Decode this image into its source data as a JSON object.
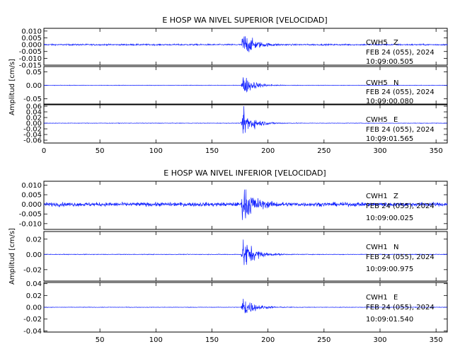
{
  "chart_data": [
    {
      "type": "line",
      "title": "E HOSP WA NIVEL SUPERIOR [VELOCIDAD]",
      "ylabel": "Amplitud [cm/s]",
      "xlim": [
        0,
        360
      ],
      "x_ticks": [
        "0",
        "50",
        "100",
        "150",
        "200",
        "250",
        "300",
        "350"
      ],
      "x_tick_values": [
        0,
        50,
        100,
        150,
        200,
        250,
        300,
        350
      ],
      "series_color": "#1020ff",
      "event_onset_x": 176,
      "channels": [
        {
          "name": "CWH5 Z",
          "station": "CWH5",
          "component": "Z",
          "date": "FEB 24 (055), 2024",
          "time": "10:09:00.505",
          "ylim": [
            -0.015,
            0.012
          ],
          "y_ticks": [
            "0.010",
            "0.005",
            "0.000",
            "-0.005",
            "-0.010",
            "-0.015"
          ],
          "y_tick_values": [
            0.01,
            0.005,
            0.0,
            -0.005,
            -0.01,
            -0.015
          ],
          "noise_level": 0.0006,
          "peak_amplitude": 0.011
        },
        {
          "name": "CWH5 N",
          "station": "CWH5",
          "component": "N",
          "date": "FEB 24 (055), 2024",
          "time": "10:09:00.080",
          "ylim": [
            -0.07,
            0.07
          ],
          "y_ticks": [
            "0.05",
            "0.00",
            "-0.05"
          ],
          "y_tick_values": [
            0.05,
            0.0,
            -0.05
          ],
          "noise_level": 0.001,
          "peak_amplitude": 0.045
        },
        {
          "name": "CWH5 E",
          "station": "CWH5",
          "component": "E",
          "date": "FEB 24 (055), 2024",
          "time": "10:09:01.565",
          "ylim": [
            -0.07,
            0.065
          ],
          "y_ticks": [
            "0.06",
            "0.04",
            "0.02",
            "0.00",
            "-0.02",
            "-0.04",
            "-0.06"
          ],
          "y_tick_values": [
            0.06,
            0.04,
            0.02,
            0.0,
            -0.02,
            -0.04,
            -0.06
          ],
          "noise_level": 0.001,
          "peak_amplitude": 0.058
        }
      ]
    },
    {
      "type": "line",
      "title": "E HOSP WA NIVEL INFERIOR [VELOCIDAD]",
      "ylabel": "Amplitud [cm/s]",
      "xlim": [
        0,
        360
      ],
      "x_ticks": [
        "50",
        "100",
        "150",
        "200",
        "250",
        "300",
        "350"
      ],
      "x_tick_values": [
        50,
        100,
        150,
        200,
        250,
        300,
        350
      ],
      "series_color": "#1020ff",
      "event_onset_x": 176,
      "channels": [
        {
          "name": "CWH1 Z",
          "station": "CWH1",
          "component": "Z",
          "date": "FEB 24 (055), 2024",
          "time": "10:09:00.025",
          "ylim": [
            -0.013,
            0.012
          ],
          "y_ticks": [
            "0.010",
            "0.005",
            "0.000",
            "-0.005",
            "-0.010"
          ],
          "y_tick_values": [
            0.01,
            0.005,
            0.0,
            -0.005,
            -0.01
          ],
          "noise_level": 0.0012,
          "peak_amplitude": 0.011
        },
        {
          "name": "CWH1 N",
          "station": "CWH1",
          "component": "N",
          "date": "FEB 24 (055), 2024",
          "time": "10:09:00.975",
          "ylim": [
            -0.035,
            0.03
          ],
          "y_ticks": [
            "0.02",
            "0.00",
            "-0.02"
          ],
          "y_tick_values": [
            0.02,
            0.0,
            -0.02
          ],
          "noise_level": 0.0005,
          "peak_amplitude": 0.026
        },
        {
          "name": "CWH1 E",
          "station": "CWH1",
          "component": "E",
          "date": "FEB 24 (055), 2024",
          "time": "10:09:01.540",
          "ylim": [
            -0.042,
            0.042
          ],
          "y_ticks": [
            "0.04",
            "0.02",
            "0.00",
            "-0.02",
            "-0.04"
          ],
          "y_tick_values": [
            0.04,
            0.02,
            0.0,
            -0.02,
            -0.04
          ],
          "noise_level": 0.0005,
          "peak_amplitude": 0.022
        }
      ]
    }
  ]
}
